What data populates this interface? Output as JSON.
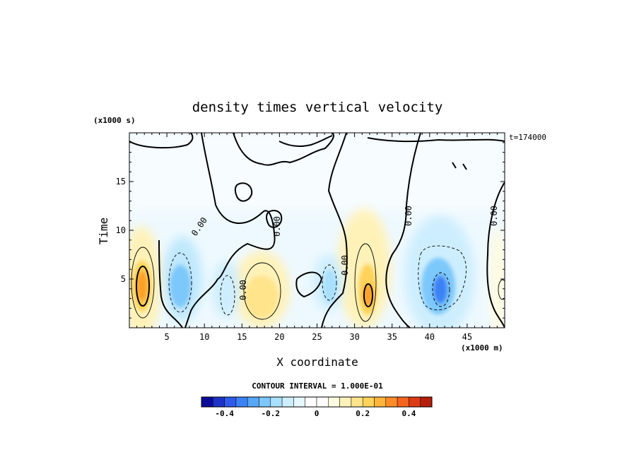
{
  "chart_data": {
    "type": "heatmap",
    "title": "density times vertical velocity",
    "xlabel": "X coordinate",
    "ylabel": "Time",
    "x_unit": "(x1000 m)",
    "y_unit": "(x1000 s)",
    "time_stamp": "t=174000",
    "xlim": [
      0,
      50
    ],
    "ylim": [
      0,
      20
    ],
    "x_ticks": [
      "5",
      "10",
      "15",
      "20",
      "25",
      "30",
      "35",
      "40",
      "45"
    ],
    "y_ticks": [
      "5",
      "10",
      "15"
    ],
    "contour_interval_text": "CONTOUR INTERVAL = 1.000E-01",
    "contour_labels": [
      "0.00",
      "0.00",
      "0.00",
      "0.00",
      "0.00",
      "0.00"
    ],
    "colorbar": {
      "min": -0.5,
      "max": 0.5,
      "ticks": [
        "-0.4",
        "-0.2",
        "0",
        "0.2",
        "0.4"
      ],
      "colors": [
        "#0b0b9a",
        "#1e32c8",
        "#2f5bea",
        "#3b82f5",
        "#55a8f8",
        "#7dc8fb",
        "#a9e0fd",
        "#cdeefe",
        "#e6f7ff",
        "#ffffff",
        "#ffffff",
        "#fffbe0",
        "#fff2b8",
        "#ffe48c",
        "#ffd25a",
        "#ffb43c",
        "#ff8c28",
        "#f5641e",
        "#dc3c14",
        "#b41e0a"
      ]
    },
    "features": [
      {
        "x": 2,
        "y": 4.7,
        "value": 0.3
      },
      {
        "x": 6.5,
        "y": 4.0,
        "value": -0.15
      },
      {
        "x": 12,
        "y": 4.0,
        "value": -0.1
      },
      {
        "x": 18,
        "y": 3.4,
        "value": 0.15
      },
      {
        "x": 26,
        "y": 4.5,
        "value": -0.08
      },
      {
        "x": 31.5,
        "y": 4.0,
        "value": 0.25
      },
      {
        "x": 41,
        "y": 3.6,
        "value": -0.25
      },
      {
        "x": 45,
        "y": 4.2,
        "value": -0.1
      },
      {
        "x": 49.5,
        "y": 4.0,
        "value": 0.08
      }
    ]
  }
}
